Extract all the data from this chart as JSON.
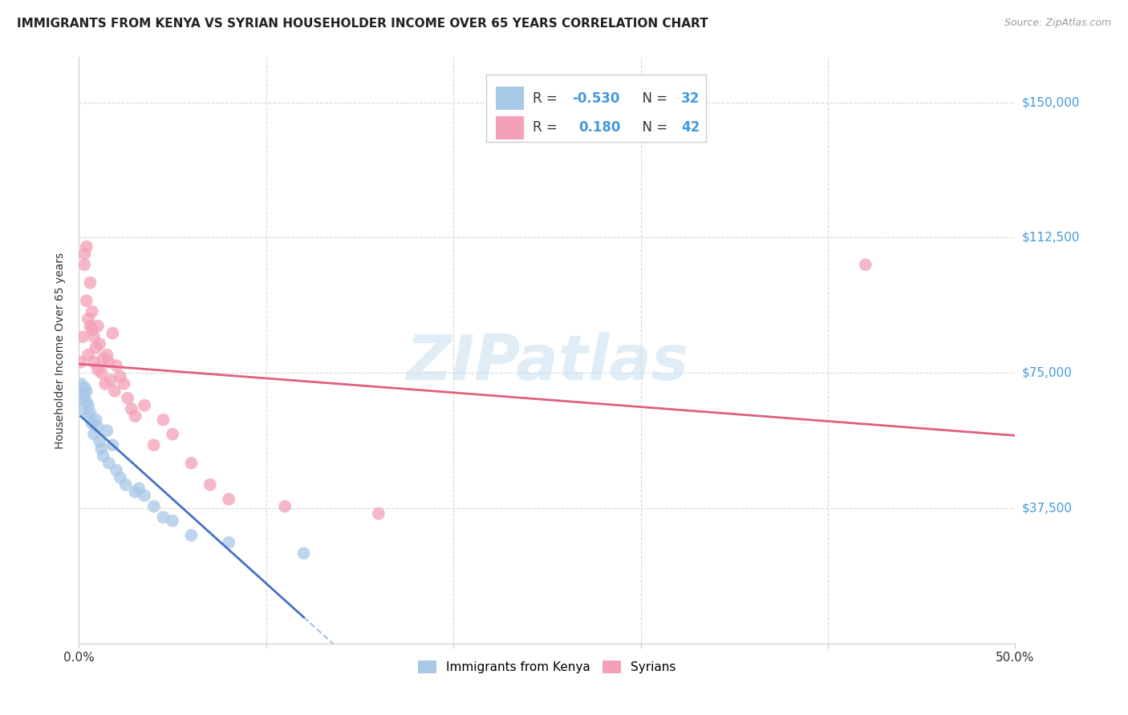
{
  "title": "IMMIGRANTS FROM KENYA VS SYRIAN HOUSEHOLDER INCOME OVER 65 YEARS CORRELATION CHART",
  "source": "Source: ZipAtlas.com",
  "ylabel": "Householder Income Over 65 years",
  "watermark": "ZIPatlas",
  "xlim": [
    0.0,
    0.5
  ],
  "ylim": [
    0,
    162500
  ],
  "yticks": [
    0,
    37500,
    75000,
    112500,
    150000
  ],
  "ytick_labels": [
    "",
    "$37,500",
    "$75,000",
    "$112,500",
    "$150,000"
  ],
  "xticks": [
    0.0,
    0.1,
    0.2,
    0.3,
    0.4,
    0.5
  ],
  "xtick_labels": [
    "0.0%",
    "",
    "",
    "",
    "",
    "50.0%"
  ],
  "kenya_R": -0.53,
  "kenya_N": 32,
  "syria_R": 0.18,
  "syria_N": 42,
  "kenya_color": "#a8c8e8",
  "kenya_line_color": "#4472c4",
  "syria_color": "#f4a0b8",
  "syria_line_color": "#e06080",
  "grid_color": "#d8d8d8",
  "background_color": "#ffffff",
  "title_fontsize": 11,
  "tick_label_color_right": "#4499dd",
  "kenya_x": [
    0.001,
    0.002,
    0.002,
    0.003,
    0.003,
    0.004,
    0.004,
    0.005,
    0.005,
    0.006,
    0.007,
    0.008,
    0.009,
    0.01,
    0.011,
    0.012,
    0.013,
    0.015,
    0.016,
    0.018,
    0.02,
    0.022,
    0.025,
    0.03,
    0.032,
    0.035,
    0.04,
    0.045,
    0.05,
    0.06,
    0.08,
    0.12
  ],
  "kenya_y": [
    72000,
    68000,
    65000,
    71000,
    69000,
    67000,
    70000,
    63000,
    66000,
    64000,
    61000,
    58000,
    62000,
    60000,
    56000,
    54000,
    52000,
    59000,
    50000,
    55000,
    48000,
    46000,
    44000,
    42000,
    43000,
    41000,
    38000,
    35000,
    34000,
    30000,
    28000,
    25000
  ],
  "syria_x": [
    0.001,
    0.002,
    0.003,
    0.003,
    0.004,
    0.004,
    0.005,
    0.005,
    0.006,
    0.006,
    0.007,
    0.007,
    0.008,
    0.008,
    0.009,
    0.01,
    0.01,
    0.011,
    0.012,
    0.013,
    0.014,
    0.015,
    0.016,
    0.017,
    0.018,
    0.019,
    0.02,
    0.022,
    0.024,
    0.026,
    0.028,
    0.03,
    0.035,
    0.04,
    0.045,
    0.05,
    0.06,
    0.07,
    0.08,
    0.11,
    0.16,
    0.42
  ],
  "syria_y": [
    78000,
    85000,
    108000,
    105000,
    110000,
    95000,
    90000,
    80000,
    88000,
    100000,
    87000,
    92000,
    85000,
    78000,
    82000,
    88000,
    76000,
    83000,
    75000,
    79000,
    72000,
    80000,
    78000,
    73000,
    86000,
    70000,
    77000,
    74000,
    72000,
    68000,
    65000,
    63000,
    66000,
    55000,
    62000,
    58000,
    50000,
    44000,
    40000,
    38000,
    36000,
    105000
  ]
}
